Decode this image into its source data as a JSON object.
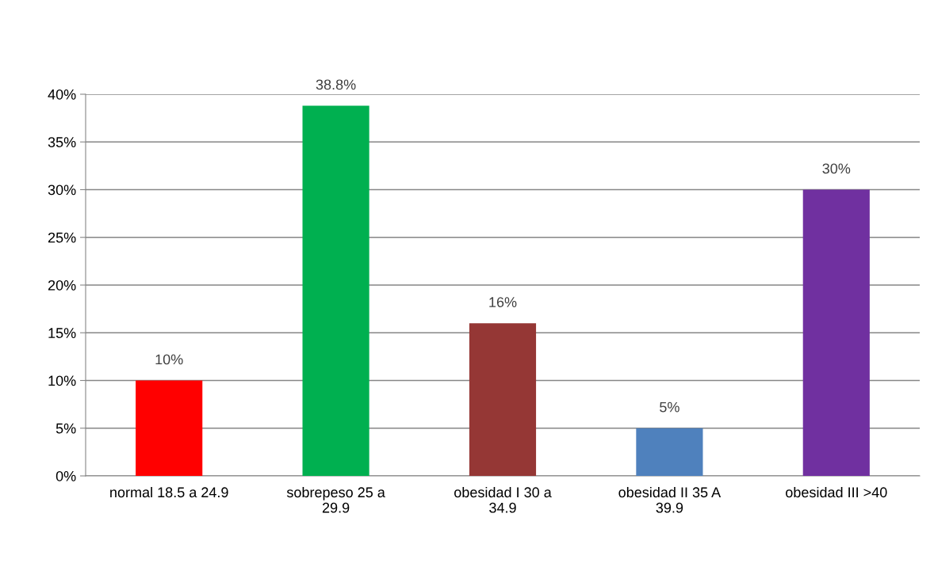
{
  "chart_data": {
    "type": "bar",
    "categories": [
      "normal 18.5 a 24.9",
      "sobrepeso 25 a\n29.9",
      "obesidad I 30 a\n34.9",
      "obesidad II 35 A\n39.9",
      "obesidad III >40"
    ],
    "values": [
      10,
      38.8,
      16,
      5,
      30
    ],
    "colors": [
      "#ff0000",
      "#00b050",
      "#953735",
      "#4f81bd",
      "#7030a0"
    ],
    "value_labels": [
      "10%",
      "38.8%",
      "16%",
      "5%",
      "30%"
    ],
    "ylim": [
      0,
      40
    ],
    "yticks": [
      {
        "value": 0,
        "label": "0%"
      },
      {
        "value": 5,
        "label": "5%"
      },
      {
        "value": 10,
        "label": "10%"
      },
      {
        "value": 15,
        "label": "15%"
      },
      {
        "value": 20,
        "label": "20%"
      },
      {
        "value": 25,
        "label": "25%"
      },
      {
        "value": 30,
        "label": "30%"
      },
      {
        "value": 35,
        "label": "35%"
      },
      {
        "value": 40,
        "label": "40%"
      }
    ],
    "grid": "y"
  }
}
